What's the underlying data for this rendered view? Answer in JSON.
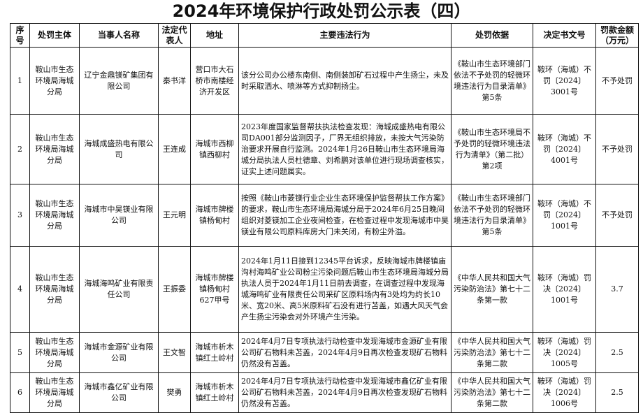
{
  "title": "2024年环境保护行政处罚公示表（四）",
  "headers": [
    "序号",
    "处罚主体",
    "当事人名称",
    "法定代表人",
    "地址",
    "主要违法行为",
    "处罚依据",
    "决定书文号",
    "罚款金额（万元）"
  ],
  "rows": [
    {
      "no": "1",
      "authority": "鞍山市生态环境局海城分局",
      "party": "辽宁金鼎镁矿集团有限公司",
      "rep": "秦书洋",
      "address": "营口市大石桥市南楼经济开发区",
      "violation": "该分公司办公楼东南侧、南侧装卸矿石过程中产生扬尘，未及时采取洒水、喷淋等方式抑制扬尘。",
      "basis": "《鞍山市生态环境部门依法不予处罚的轻微环境违法行为目录清单》第5条",
      "doc": "鞍环（海城）不罚〔2024〕3001号",
      "fine": "不予处罚"
    },
    {
      "no": "2",
      "authority": "鞍山市生态环境局海城分局",
      "party": "海城成盛热电有限公司",
      "rep": "王连成",
      "address": "海城市西柳镇西柳村",
      "violation": "2023年度国家监督帮扶执法检查发现：海城成盛热电有限公司DA001部分监测因子，厂界无组织排放，未按大气污染防治要求开展自行监测。2024年1月26日鞍山市生态环境局海城分局执法人员杜德章、刘希鹏对该单位进行现场调查核实，证实上述问题属实。",
      "basis": "《鞍山市生态环境局不予处罚的轻微环境违法行为清单》（第二批）第2项",
      "doc": "鞍环（海城）不罚〔2024〕4001号",
      "fine": "不予处罚"
    },
    {
      "no": "3",
      "authority": "鞍山市生态环境局海城分局",
      "party": "海城市中昊镁业有限公司",
      "rep": "王元明",
      "address": "海城市牌楼镇杨甸村",
      "violation": "按照《鞍山市菱镁行业企业生态环境保护监督帮扶工作方案》的要求，鞍山市生态环境局海城分局于2024年6月25日晚间组织对菱镁加工企业夜间检查，在检查过程中发现海城市中昊镁业有限公司原料库房大门未关闭，有粉尘外溢。",
      "basis": "《鞍山市生态环境部门依法不予处罚的轻微环境违法行为目录清单》第5条",
      "doc": "鞍环（海城）不罚〔2024〕1001号",
      "fine": "不予处罚"
    },
    {
      "no": "4",
      "authority": "鞍山市生态环境局海城分局",
      "party": "海城海鸣矿业有限责任公司",
      "rep": "王振委",
      "address": "海城市牌楼镇杨甸村627甲号",
      "violation": "2024年1月11日接到12345平台诉求，反映海城市牌楼镇庙沟村海鸣矿业公司粉尘污染问题后鞍山市生态环境局海城分局执法人员于2024年1月11日前去调查，在调查过程中发现海城海鸣矿业有限责任公司采矿区原料场内有3处均为约长10米、宽20米、高5米原料矿石没有进行苫盖，如遇大风天气会产生扬尘污染会对外环境产生污染。",
      "basis": "《中华人民共和国大气污染防治法》第七十二条第一款",
      "doc": "鞍环（海城）罚决〔2024〕1001号",
      "fine": "3.7"
    },
    {
      "no": "5",
      "authority": "鞍山市生态环境局海城分局",
      "party": "海城市金源矿业有限公司",
      "rep": "王文智",
      "address": "海城市析木镇红土岭村",
      "violation": "2024年4月7日专项执法行动检查中发现海城市金源矿业有限公司矿石物料未苫盖，2024年4月9日再次检查发现矿石物料仍然没有苫盖。",
      "basis": "《中华人民共和国大气污染防治法》第七十二条第二款",
      "doc": "鞍环（海城）罚决〔2024〕1005号",
      "fine": "2.5"
    },
    {
      "no": "6",
      "authority": "鞍山市生态环境局海城分局",
      "party": "海城市鑫亿矿业有限公司",
      "rep": "樊勇",
      "address": "海城市析木镇红土岭村",
      "violation": "2024年4月7日专项执法行动检查中发现海城市鑫亿矿业有限公司矿石物料未苫盖，2024年4月9日再次检查发现矿石物料仍然没有苫盖。",
      "basis": "《中华人民共和国大气污染防治法》第七十二条第二款",
      "doc": "鞍环（海城）罚决〔2024〕1006号",
      "fine": "2.5"
    }
  ]
}
